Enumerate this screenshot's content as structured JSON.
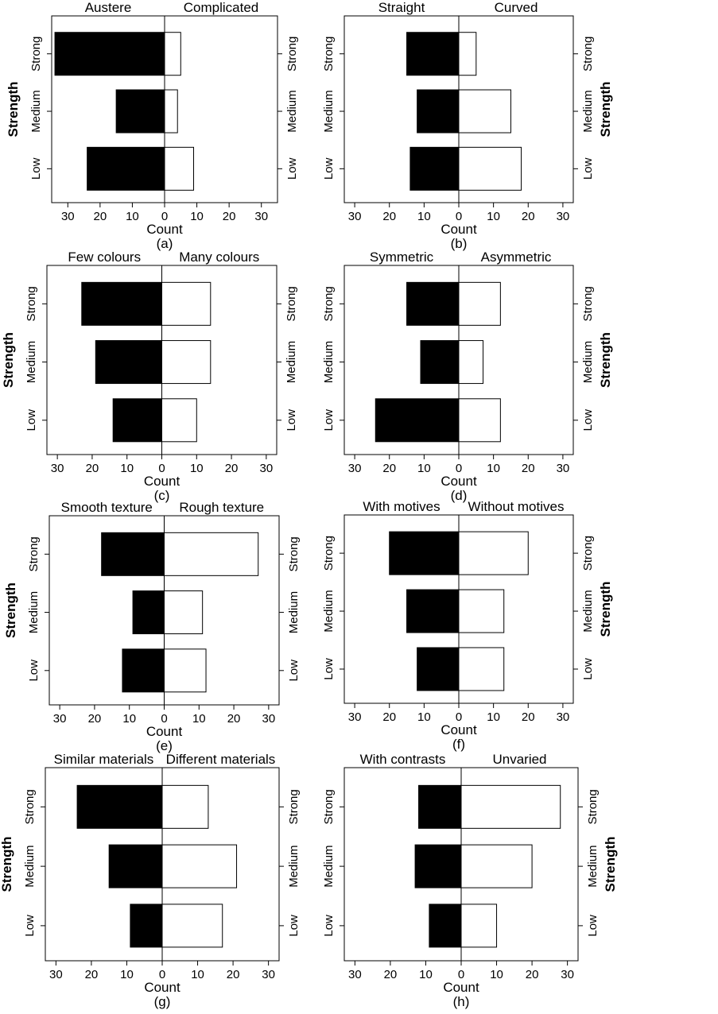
{
  "figure": {
    "shared": {
      "categories": [
        "Strong",
        "Medium",
        "Low"
      ],
      "xticks": [
        "30",
        "20",
        "10",
        "0",
        "10",
        "20",
        "30"
      ],
      "xlabel": "Count",
      "ylabel": "Strength",
      "left_fill_color": "#000000",
      "right_fill_color": "#ffffff"
    }
  },
  "chart_data": [
    {
      "type": "bar",
      "caption": "(a)",
      "left_label": "Austere",
      "right_label": "Complicated",
      "categories": [
        "Strong",
        "Medium",
        "Low"
      ],
      "series": [
        {
          "name": "Austere",
          "values": [
            34,
            15,
            24
          ]
        },
        {
          "name": "Complicated",
          "values": [
            5,
            4,
            9
          ]
        }
      ],
      "xlim": [
        -35,
        35
      ],
      "xlabel": "Count",
      "ylabel": "Strength",
      "ylabel_side": "left"
    },
    {
      "type": "bar",
      "caption": "(b)",
      "left_label": "Straight",
      "right_label": "Curved",
      "categories": [
        "Strong",
        "Medium",
        "Low"
      ],
      "series": [
        {
          "name": "Straight",
          "values": [
            15,
            12,
            14
          ]
        },
        {
          "name": "Curved",
          "values": [
            5,
            15,
            18
          ]
        }
      ],
      "xlim": [
        -33,
        33
      ],
      "xlabel": "Count",
      "ylabel": "Strength",
      "ylabel_side": "right"
    },
    {
      "type": "bar",
      "caption": "(c)",
      "left_label": "Few colours",
      "right_label": "Many colours",
      "categories": [
        "Strong",
        "Medium",
        "Low"
      ],
      "series": [
        {
          "name": "Few colours",
          "values": [
            23,
            19,
            14
          ]
        },
        {
          "name": "Many colours",
          "values": [
            14,
            14,
            10
          ]
        }
      ],
      "xlim": [
        -33,
        33
      ],
      "xlabel": "Count",
      "ylabel": "Strength",
      "ylabel_side": "left"
    },
    {
      "type": "bar",
      "caption": "(d)",
      "left_label": "Symmetric",
      "right_label": "Asymmetric",
      "categories": [
        "Strong",
        "Medium",
        "Low"
      ],
      "series": [
        {
          "name": "Symmetric",
          "values": [
            15,
            11,
            24
          ]
        },
        {
          "name": "Asymmetric",
          "values": [
            12,
            7,
            12
          ]
        }
      ],
      "xlim": [
        -33,
        33
      ],
      "xlabel": "Count",
      "ylabel": "Strength",
      "ylabel_side": "right"
    },
    {
      "type": "bar",
      "caption": "(e)",
      "left_label": "Smooth texture",
      "right_label": "Rough texture",
      "categories": [
        "Strong",
        "Medium",
        "Low"
      ],
      "series": [
        {
          "name": "Smooth texture",
          "values": [
            18,
            9,
            12
          ]
        },
        {
          "name": "Rough texture",
          "values": [
            27,
            11,
            12
          ]
        }
      ],
      "xlim": [
        -33,
        33
      ],
      "xlabel": "Count",
      "ylabel": "Strength",
      "ylabel_side": "left"
    },
    {
      "type": "bar",
      "caption": "(f)",
      "left_label": "With motives",
      "right_label": "Without motives",
      "categories": [
        "Strong",
        "Medium",
        "Low"
      ],
      "series": [
        {
          "name": "With motives",
          "values": [
            20,
            15,
            12
          ]
        },
        {
          "name": "Without motives",
          "values": [
            20,
            13,
            13
          ]
        }
      ],
      "xlim": [
        -33,
        33
      ],
      "xlabel": "Count",
      "ylabel": "Strength",
      "ylabel_side": "right"
    },
    {
      "type": "bar",
      "caption": "(g)",
      "left_label": "Similar materials",
      "right_label": "Different materials",
      "categories": [
        "Strong",
        "Medium",
        "Low"
      ],
      "series": [
        {
          "name": "Similar materials",
          "values": [
            24,
            15,
            9
          ]
        },
        {
          "name": "Different materials",
          "values": [
            13,
            21,
            17
          ]
        }
      ],
      "xlim": [
        -33,
        33
      ],
      "xlabel": "Count",
      "ylabel": "Strength",
      "ylabel_side": "left"
    },
    {
      "type": "bar",
      "caption": "(h)",
      "left_label": "With contrasts",
      "right_label": "Unvaried",
      "categories": [
        "Strong",
        "Medium",
        "Low"
      ],
      "series": [
        {
          "name": "With contrasts",
          "values": [
            12,
            13,
            9
          ]
        },
        {
          "name": "Unvaried",
          "values": [
            28,
            20,
            10
          ]
        }
      ],
      "xlim": [
        -33,
        33
      ],
      "xlabel": "Count",
      "ylabel": "Strength",
      "ylabel_side": "right"
    }
  ]
}
